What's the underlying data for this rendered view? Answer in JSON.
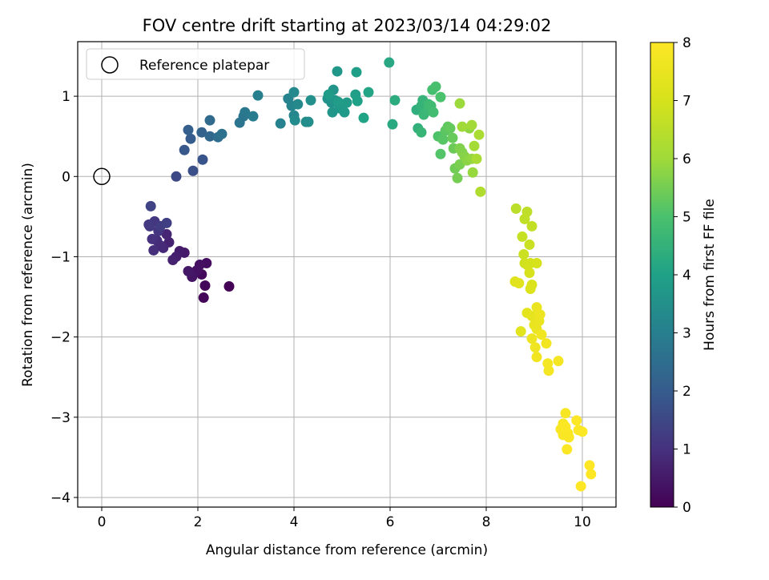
{
  "chart_data": {
    "type": "scatter",
    "title": "FOV centre drift starting at 2023/03/14 04:29:02",
    "xlabel": "Angular distance from reference (arcmin)",
    "ylabel": "Rotation from reference (arcmin)",
    "xlim": [
      -0.5,
      10.7
    ],
    "ylim": [
      -4.12,
      1.68
    ],
    "xticks": [
      0,
      2,
      4,
      6,
      8,
      10
    ],
    "yticks": [
      -4,
      -3,
      -2,
      -1,
      0,
      1
    ],
    "xtick_labels": [
      "0",
      "2",
      "4",
      "6",
      "8",
      "10"
    ],
    "ytick_labels": [
      "−4",
      "−3",
      "−2",
      "−1",
      "0",
      "1"
    ],
    "grid": true,
    "legend": {
      "position": "upper-left",
      "entries": [
        "Reference platepar"
      ]
    },
    "reference_point": {
      "x": 0,
      "y": 0
    },
    "colorbar": {
      "label": "Hours from first FF file",
      "min": 0,
      "max": 8,
      "ticks": [
        "0",
        "1",
        "2",
        "3",
        "4",
        "5",
        "6",
        "7",
        "8"
      ],
      "colormap": "viridis"
    },
    "points": [
      [
        2.65,
        -1.37,
        0.05
      ],
      [
        2.12,
        -1.51,
        0.1
      ],
      [
        2.15,
        -1.36,
        0.15
      ],
      [
        2.08,
        -1.22,
        0.2
      ],
      [
        2.18,
        -1.08,
        0.25
      ],
      [
        2.04,
        -1.1,
        0.3
      ],
      [
        1.98,
        -1.17,
        0.35
      ],
      [
        1.88,
        -1.25,
        0.4
      ],
      [
        1.8,
        -1.18,
        0.45
      ],
      [
        1.72,
        -0.95,
        0.5
      ],
      [
        1.62,
        -0.93,
        0.55
      ],
      [
        1.55,
        -1.0,
        0.6
      ],
      [
        1.48,
        -1.04,
        0.65
      ],
      [
        1.4,
        -0.82,
        0.7
      ],
      [
        1.35,
        -0.72,
        0.75
      ],
      [
        1.28,
        -0.89,
        0.8
      ],
      [
        1.22,
        -0.86,
        0.85
      ],
      [
        1.15,
        -0.8,
        0.9
      ],
      [
        1.08,
        -0.92,
        0.95
      ],
      [
        1.05,
        -0.78,
        1.0
      ],
      [
        1.18,
        -0.68,
        1.05
      ],
      [
        1.1,
        -0.56,
        1.1
      ],
      [
        1.0,
        -0.62,
        1.15
      ],
      [
        0.98,
        -0.6,
        1.2
      ],
      [
        1.22,
        -0.62,
        1.25
      ],
      [
        1.35,
        -0.58,
        1.3
      ],
      [
        1.02,
        -0.37,
        1.4
      ],
      [
        1.55,
        0.0,
        1.55
      ],
      [
        1.9,
        0.07,
        1.7
      ],
      [
        2.1,
        0.21,
        1.8
      ],
      [
        1.72,
        0.33,
        1.9
      ],
      [
        1.85,
        0.47,
        2.0
      ],
      [
        1.8,
        0.58,
        2.1
      ],
      [
        2.08,
        0.55,
        2.2
      ],
      [
        2.25,
        0.5,
        2.3
      ],
      [
        2.25,
        0.7,
        2.4
      ],
      [
        2.42,
        0.49,
        2.5
      ],
      [
        2.5,
        0.53,
        2.6
      ],
      [
        2.87,
        0.67,
        2.7
      ],
      [
        2.95,
        0.75,
        2.75
      ],
      [
        2.98,
        0.8,
        2.8
      ],
      [
        3.15,
        0.75,
        2.9
      ],
      [
        3.25,
        1.01,
        3.0
      ],
      [
        3.72,
        0.66,
        3.05
      ],
      [
        3.88,
        0.97,
        3.1
      ],
      [
        3.95,
        0.88,
        3.15
      ],
      [
        4.0,
        0.76,
        3.2
      ],
      [
        4.0,
        1.05,
        3.25
      ],
      [
        4.08,
        0.9,
        3.3
      ],
      [
        4.02,
        0.7,
        3.35
      ],
      [
        4.25,
        0.68,
        3.4
      ],
      [
        4.3,
        0.68,
        3.45
      ],
      [
        4.35,
        0.95,
        3.5
      ],
      [
        4.7,
        0.97,
        3.55
      ],
      [
        4.78,
        0.92,
        3.6
      ],
      [
        4.82,
        1.08,
        3.62
      ],
      [
        4.85,
        0.95,
        3.65
      ],
      [
        4.8,
        0.8,
        3.68
      ],
      [
        4.9,
        1.31,
        3.7
      ],
      [
        4.95,
        0.85,
        3.72
      ],
      [
        5.0,
        0.85,
        3.75
      ],
      [
        5.05,
        0.8,
        3.78
      ],
      [
        5.1,
        0.92,
        3.8
      ],
      [
        4.72,
        1.02,
        3.82
      ],
      [
        4.92,
        0.93,
        3.85
      ],
      [
        5.28,
        1.02,
        3.9
      ],
      [
        5.3,
        1.3,
        3.95
      ],
      [
        5.32,
        0.94,
        4.0
      ],
      [
        5.45,
        0.73,
        4.05
      ],
      [
        5.55,
        1.05,
        4.1
      ],
      [
        5.98,
        1.42,
        4.2
      ],
      [
        6.05,
        0.65,
        4.25
      ],
      [
        6.1,
        0.95,
        4.3
      ],
      [
        6.55,
        0.83,
        4.4
      ],
      [
        6.58,
        0.6,
        4.45
      ],
      [
        6.65,
        0.88,
        4.5
      ],
      [
        6.68,
        0.95,
        4.55
      ],
      [
        6.65,
        0.55,
        4.6
      ],
      [
        6.7,
        0.77,
        4.65
      ],
      [
        6.78,
        0.82,
        4.7
      ],
      [
        6.8,
        0.9,
        4.75
      ],
      [
        6.85,
        0.88,
        4.8
      ],
      [
        6.9,
        0.8,
        4.85
      ],
      [
        6.88,
        1.08,
        4.9
      ],
      [
        6.95,
        1.12,
        4.95
      ],
      [
        7.05,
        0.99,
        5.0
      ],
      [
        7.0,
        0.5,
        5.05
      ],
      [
        7.05,
        0.28,
        5.1
      ],
      [
        7.1,
        0.46,
        5.15
      ],
      [
        7.15,
        0.57,
        5.2
      ],
      [
        7.2,
        0.62,
        5.25
      ],
      [
        7.25,
        0.6,
        5.3
      ],
      [
        7.3,
        0.48,
        5.35
      ],
      [
        7.32,
        0.35,
        5.4
      ],
      [
        7.35,
        0.1,
        5.45
      ],
      [
        7.4,
        -0.02,
        5.5
      ],
      [
        7.45,
        0.15,
        5.55
      ],
      [
        7.45,
        0.35,
        5.6
      ],
      [
        7.5,
        0.3,
        5.65
      ],
      [
        7.55,
        0.25,
        5.7
      ],
      [
        7.6,
        0.2,
        5.75
      ],
      [
        7.65,
        0.6,
        5.8
      ],
      [
        7.7,
        0.22,
        5.85
      ],
      [
        7.72,
        0.05,
        5.9
      ],
      [
        7.45,
        0.91,
        5.95
      ],
      [
        7.5,
        0.62,
        6.0
      ],
      [
        7.7,
        0.64,
        6.05
      ],
      [
        7.75,
        0.38,
        6.1
      ],
      [
        7.8,
        0.22,
        6.15
      ],
      [
        7.85,
        0.52,
        6.2
      ],
      [
        7.88,
        -0.19,
        6.3
      ],
      [
        8.62,
        -0.4,
        6.5
      ],
      [
        8.85,
        -0.44,
        6.55
      ],
      [
        8.8,
        -0.53,
        6.6
      ],
      [
        8.95,
        -0.62,
        6.65
      ],
      [
        8.75,
        -0.75,
        6.7
      ],
      [
        8.9,
        -0.85,
        6.75
      ],
      [
        8.78,
        -0.97,
        6.8
      ],
      [
        8.8,
        -1.08,
        6.85
      ],
      [
        8.85,
        -1.1,
        6.9
      ],
      [
        8.92,
        -1.08,
        6.95
      ],
      [
        9.05,
        -1.08,
        7.0
      ],
      [
        8.9,
        -1.2,
        7.05
      ],
      [
        8.95,
        -1.35,
        7.1
      ],
      [
        8.92,
        -1.4,
        7.15
      ],
      [
        8.6,
        -1.31,
        7.2
      ],
      [
        8.68,
        -1.33,
        7.25
      ],
      [
        8.72,
        -1.93,
        7.3
      ],
      [
        8.85,
        -1.7,
        7.35
      ],
      [
        8.95,
        -1.74,
        7.4
      ],
      [
        9.0,
        -1.85,
        7.45
      ],
      [
        9.05,
        -1.9,
        7.5
      ],
      [
        9.1,
        -1.8,
        7.52
      ],
      [
        9.05,
        -1.63,
        7.55
      ],
      [
        9.12,
        -1.72,
        7.58
      ],
      [
        8.95,
        -2.02,
        7.6
      ],
      [
        9.02,
        -2.13,
        7.65
      ],
      [
        9.05,
        -2.25,
        7.68
      ],
      [
        9.15,
        -1.97,
        7.7
      ],
      [
        9.25,
        -2.08,
        7.73
      ],
      [
        9.28,
        -2.33,
        7.75
      ],
      [
        9.3,
        -2.42,
        7.78
      ],
      [
        9.5,
        -2.3,
        7.8
      ],
      [
        9.6,
        -3.08,
        7.82
      ],
      [
        9.65,
        -2.95,
        7.85
      ],
      [
        9.55,
        -3.15,
        7.87
      ],
      [
        9.6,
        -3.22,
        7.89
      ],
      [
        9.62,
        -3.1,
        7.9
      ],
      [
        9.7,
        -3.2,
        7.92
      ],
      [
        9.72,
        -3.25,
        7.93
      ],
      [
        9.65,
        -3.12,
        7.94
      ],
      [
        9.68,
        -3.4,
        7.95
      ],
      [
        9.88,
        -3.04,
        7.96
      ],
      [
        9.92,
        -3.16,
        7.97
      ],
      [
        10.0,
        -3.18,
        7.98
      ],
      [
        9.97,
        -3.86,
        7.99
      ],
      [
        10.15,
        -3.6,
        8.0
      ],
      [
        10.18,
        -3.71,
        8.0
      ]
    ]
  }
}
